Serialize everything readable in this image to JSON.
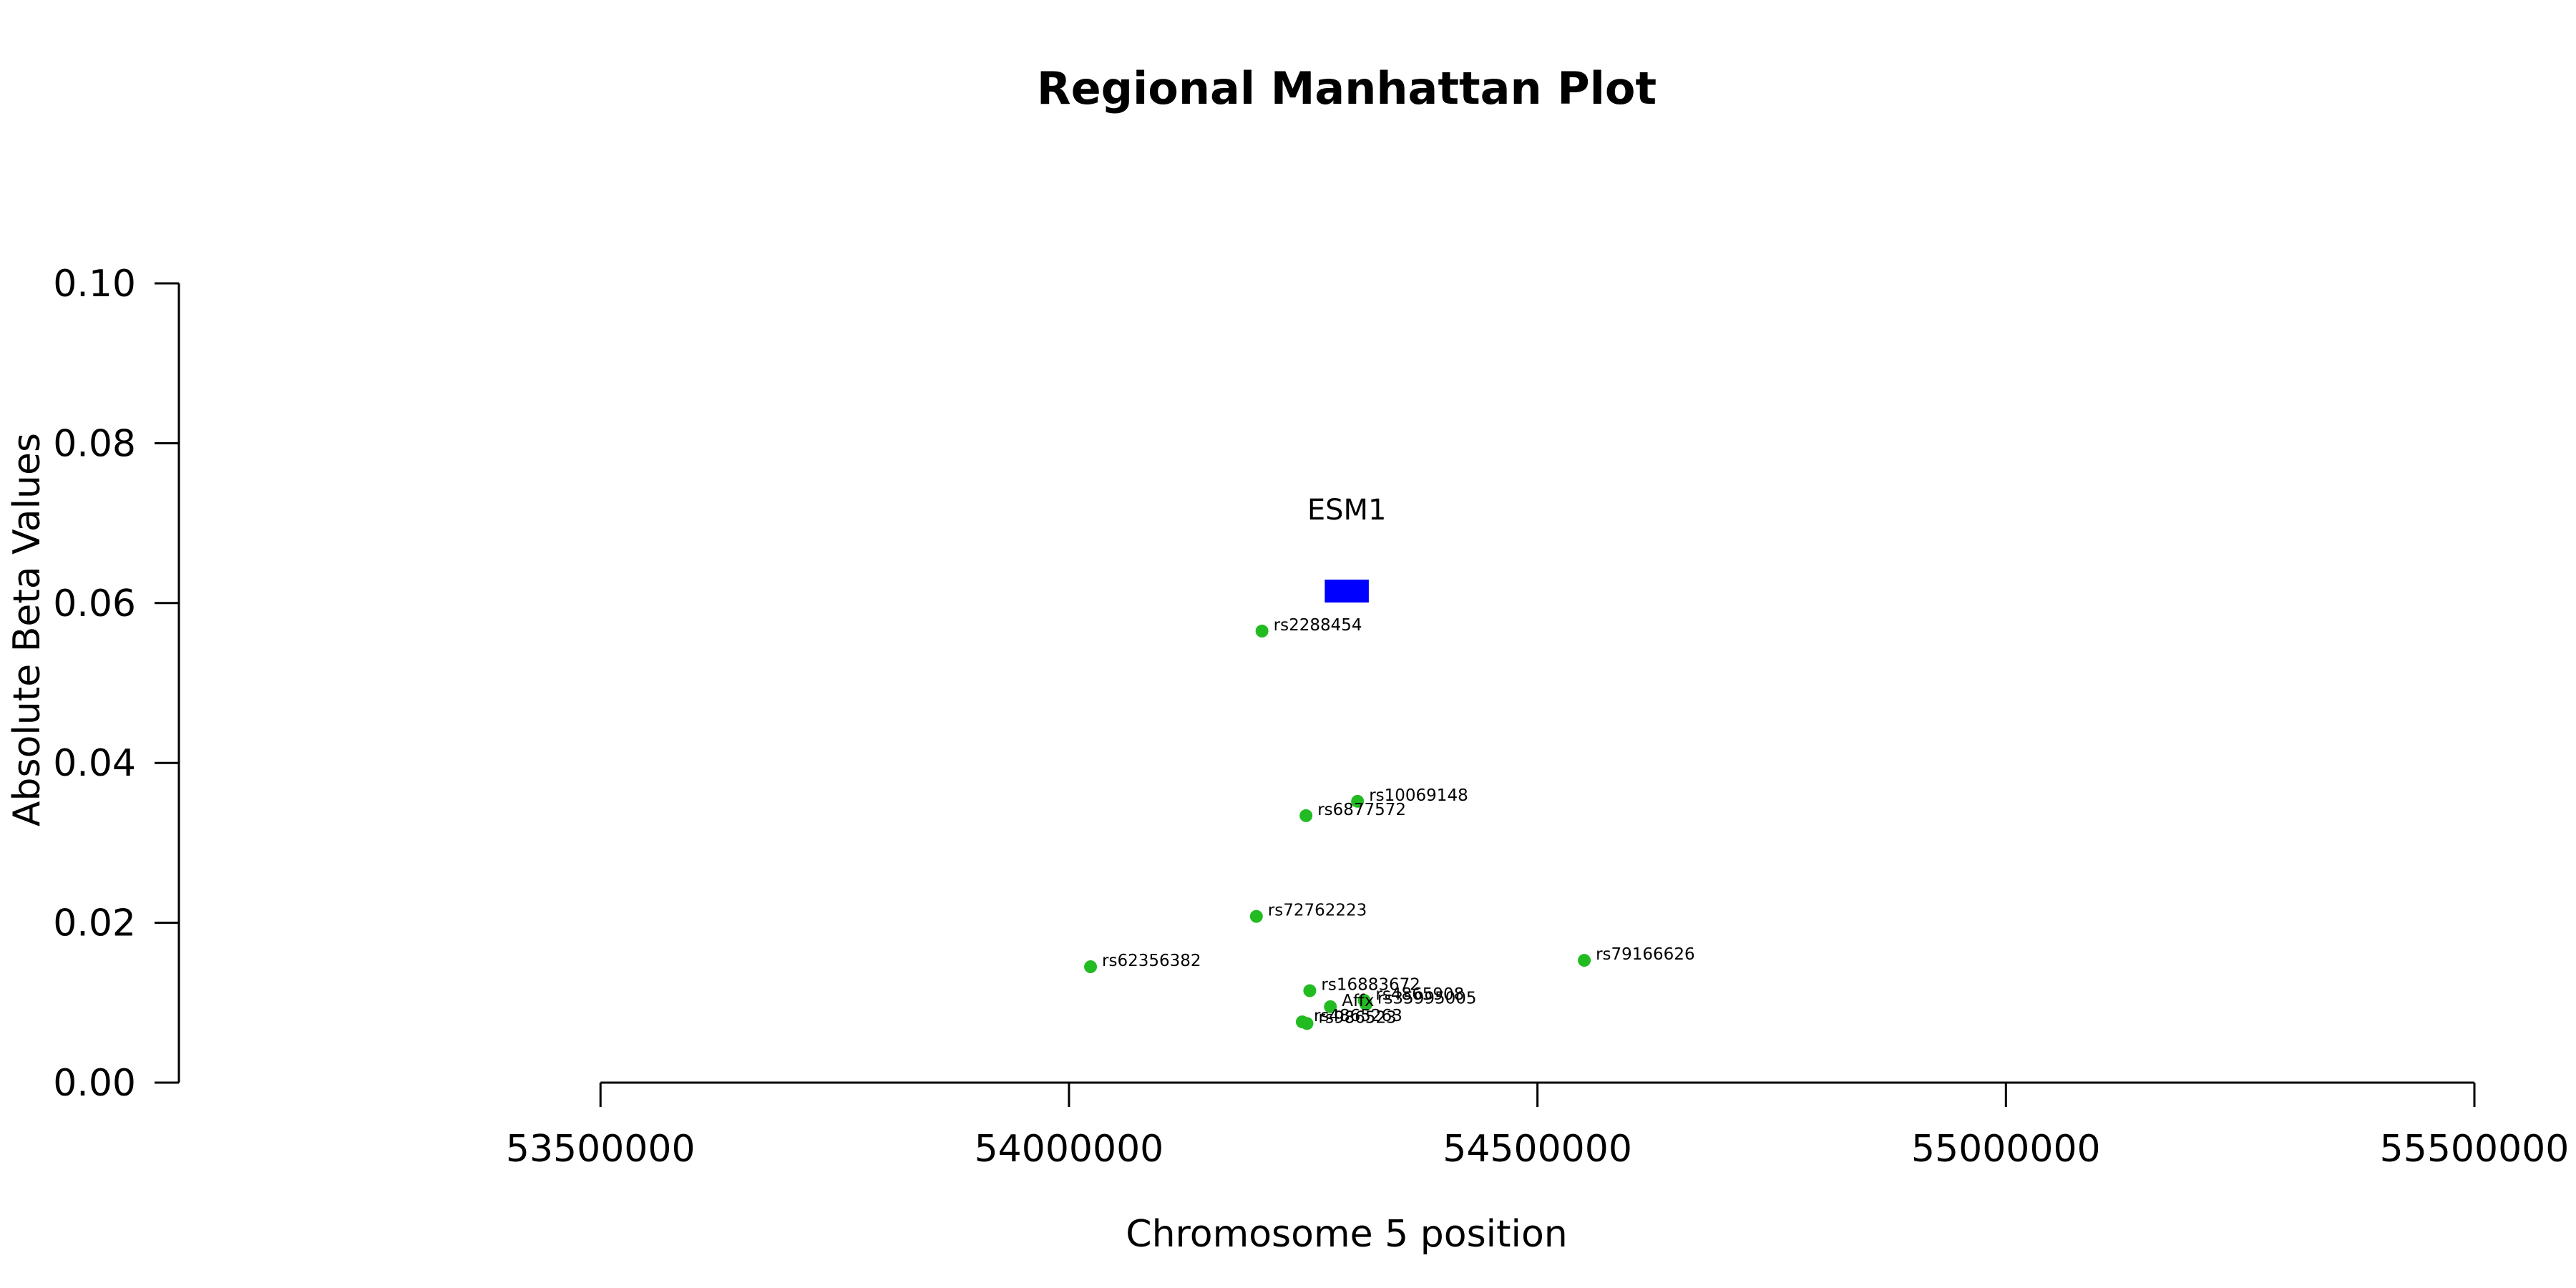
{
  "chart_data": {
    "type": "scatter",
    "title": "Regional Manhattan Plot",
    "xlabel": "Chromosome 5 position",
    "ylabel": "Absolute Beta Values",
    "xlim": [
      53050000,
      55500000
    ],
    "ylim": [
      0,
      0.1
    ],
    "xticks": [
      53500000,
      54000000,
      54500000,
      55000000,
      55500000
    ],
    "yticks": [
      0.0,
      0.02,
      0.04,
      0.06,
      0.08,
      0.1
    ],
    "xtick_labels": [
      "53500000",
      "54000000",
      "54500000",
      "55000000",
      "55500000"
    ],
    "ytick_labels": [
      "0.00",
      "0.02",
      "0.04",
      "0.06",
      "0.08",
      "0.10"
    ],
    "grid": false,
    "point_color": "#22bb22",
    "gene_color": "#0000ff",
    "gene": {
      "name": "ESM1",
      "start": 54273000,
      "end": 54320000,
      "y": 0.0615
    },
    "points": [
      {
        "label": "rs2288454",
        "x": 54206000,
        "y": 0.0565
      },
      {
        "label": "rs10069148",
        "x": 54308000,
        "y": 0.0352
      },
      {
        "label": "rs6877572",
        "x": 54253000,
        "y": 0.0334
      },
      {
        "label": "rs72762223",
        "x": 54200000,
        "y": 0.0208
      },
      {
        "label": "rs62356382",
        "x": 54023000,
        "y": 0.0145
      },
      {
        "label": "rs79166626",
        "x": 54550000,
        "y": 0.0153
      },
      {
        "label": "rs16883672",
        "x": 54257000,
        "y": 0.0115
      },
      {
        "label": "rs4865908",
        "x": 54315000,
        "y": 0.0103
      },
      {
        "label": "rs35995005",
        "x": 54317000,
        "y": 0.0098
      },
      {
        "label": "Affx",
        "x": 54279000,
        "y": 0.0095
      },
      {
        "label": "rs4865263",
        "x": 54249000,
        "y": 0.0076
      },
      {
        "label": "rs986523",
        "x": 54254000,
        "y": 0.0074
      }
    ]
  }
}
